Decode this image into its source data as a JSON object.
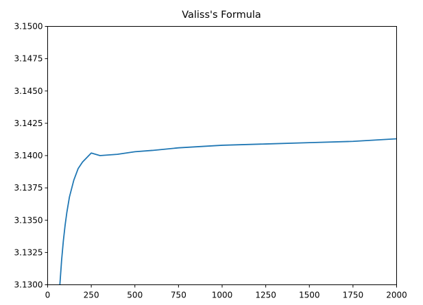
{
  "chart_data": {
    "type": "line",
    "title": "Valiss's Formula",
    "xlabel": "",
    "ylabel": "",
    "xlim": [
      0,
      2000
    ],
    "ylim": [
      3.13,
      3.15
    ],
    "x_ticks": [
      0,
      250,
      500,
      750,
      1000,
      1250,
      1500,
      1750,
      2000
    ],
    "y_ticks": [
      3.13,
      3.1325,
      3.135,
      3.1375,
      3.14,
      3.1425,
      3.145,
      3.1475,
      3.15
    ],
    "x_tick_labels": [
      "0",
      "250",
      "500",
      "750",
      "1000",
      "1250",
      "1500",
      "1750",
      "2000"
    ],
    "y_tick_labels": [
      "3.1300",
      "3.1325",
      "3.1350",
      "3.1375",
      "3.1400",
      "3.1425",
      "3.1450",
      "3.1475",
      "3.1500"
    ],
    "grid": false,
    "series": [
      {
        "color": "#1f77b4",
        "x": [
          70,
          80,
          90,
          100,
          110,
          125,
          150,
          175,
          200,
          250,
          300,
          400,
          500,
          600,
          750,
          1000,
          1250,
          1500,
          1750,
          2000
        ],
        "y": [
          3.13,
          3.1319,
          3.1334,
          3.1346,
          3.1356,
          3.1368,
          3.1381,
          3.139,
          3.1395,
          3.1402,
          3.14,
          3.1401,
          3.1403,
          3.1404,
          3.1406,
          3.1408,
          3.1409,
          3.141,
          3.1411,
          3.1413
        ]
      }
    ]
  }
}
